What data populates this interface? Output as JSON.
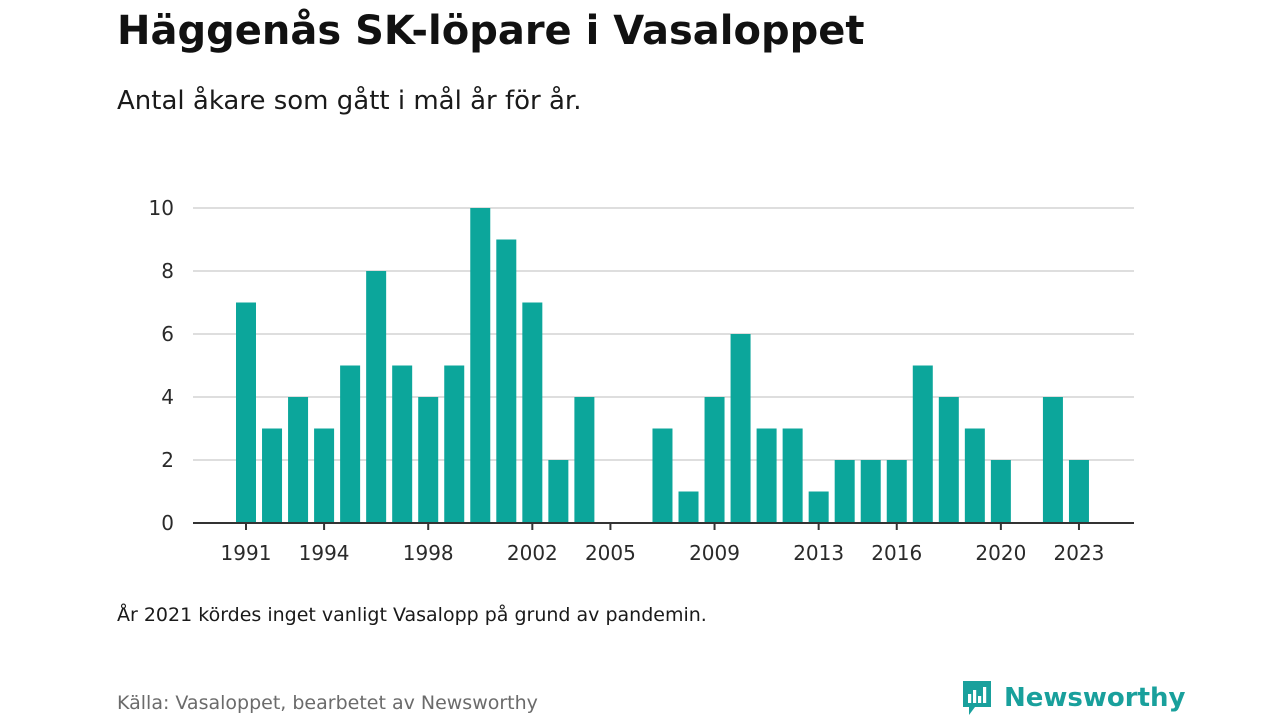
{
  "title": "Häggenås SK-löpare i Vasaloppet",
  "subtitle": "Antal åkare som gått i mål år för år.",
  "note": "År 2021 kördes inget vanligt Vasalopp på grund av pandemin.",
  "source": "Källa: Vasaloppet, bearbetet av Newsworthy",
  "brand": {
    "name": "Newsworthy",
    "icon": "newsworthy-logo-icon",
    "color": "#19a09c"
  },
  "chart_data": {
    "type": "bar",
    "title": "Häggenås SK-löpare i Vasaloppet",
    "subtitle": "Antal åkare som gått i mål år för år.",
    "xlabel": "",
    "ylabel": "",
    "x": [
      1991,
      1992,
      1993,
      1994,
      1995,
      1996,
      1997,
      1998,
      1999,
      2000,
      2001,
      2002,
      2003,
      2004,
      2005,
      2006,
      2007,
      2008,
      2009,
      2010,
      2011,
      2012,
      2013,
      2014,
      2015,
      2016,
      2017,
      2018,
      2019,
      2020,
      2021,
      2022,
      2023
    ],
    "values": [
      7,
      3,
      4,
      3,
      5,
      8,
      5,
      4,
      5,
      10,
      9,
      7,
      2,
      4,
      0,
      0,
      3,
      1,
      4,
      6,
      3,
      3,
      1,
      2,
      2,
      2,
      5,
      4,
      3,
      2,
      0,
      4,
      2
    ],
    "xlim": [
      1991,
      2023
    ],
    "ylim": [
      0,
      10
    ],
    "x_ticks": [
      1991,
      1994,
      1998,
      2002,
      2005,
      2009,
      2013,
      2016,
      2020,
      2023
    ],
    "y_ticks": [
      0,
      2,
      4,
      6,
      8,
      10
    ],
    "bar_color": "#0ca69b",
    "grid": true,
    "legend": "none"
  }
}
